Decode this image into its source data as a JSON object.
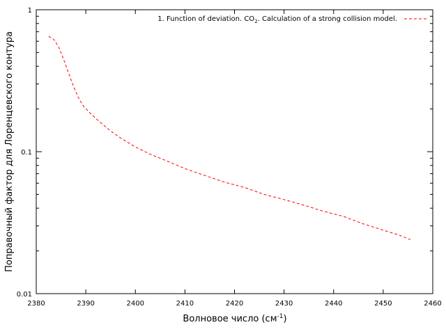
{
  "chart_data": {
    "type": "line",
    "title": "",
    "xlabel": "Волновое число (см",
    "xlabel_sup": "-1",
    "xlabel_end": ")",
    "ylabel": "Поправочный фактор для Лоренцевского контура",
    "xlim": [
      2380,
      2460
    ],
    "ylim": [
      0.01,
      1
    ],
    "yscale": "log",
    "grid": false,
    "legend_position": "top-right",
    "x_ticks": [
      2380,
      2390,
      2400,
      2410,
      2420,
      2430,
      2440,
      2450,
      2460
    ],
    "x_tick_labels": [
      "2380",
      "2390",
      "2400",
      "2410",
      "2420",
      "2430",
      "2440",
      "2450",
      "2460"
    ],
    "y_ticks": [
      0.01,
      0.1,
      1
    ],
    "y_tick_labels": [
      "0.01",
      "0.1",
      "1"
    ],
    "legend": {
      "prefix": "1. Function of deviation. CO",
      "subscript": "2",
      "suffix": ". Calculation of a strong collision model."
    },
    "series": [
      {
        "color": "#ff0000",
        "dash": "dashed",
        "x": [
          2382.5,
          2383.5,
          2384.5,
          2385.5,
          2386.5,
          2387.5,
          2388.5,
          2389.5,
          2391,
          2393,
          2395,
          2397,
          2400,
          2403,
          2406,
          2410,
          2414,
          2418,
          2422,
          2426,
          2430,
          2434,
          2438,
          2442,
          2446,
          2450,
          2453,
          2455.5
        ],
        "y": [
          0.65,
          0.62,
          0.55,
          0.45,
          0.36,
          0.29,
          0.24,
          0.21,
          0.185,
          0.16,
          0.14,
          0.125,
          0.108,
          0.096,
          0.087,
          0.076,
          0.068,
          0.061,
          0.056,
          0.05,
          0.046,
          0.042,
          0.038,
          0.035,
          0.031,
          0.028,
          0.026,
          0.024
        ]
      }
    ]
  }
}
